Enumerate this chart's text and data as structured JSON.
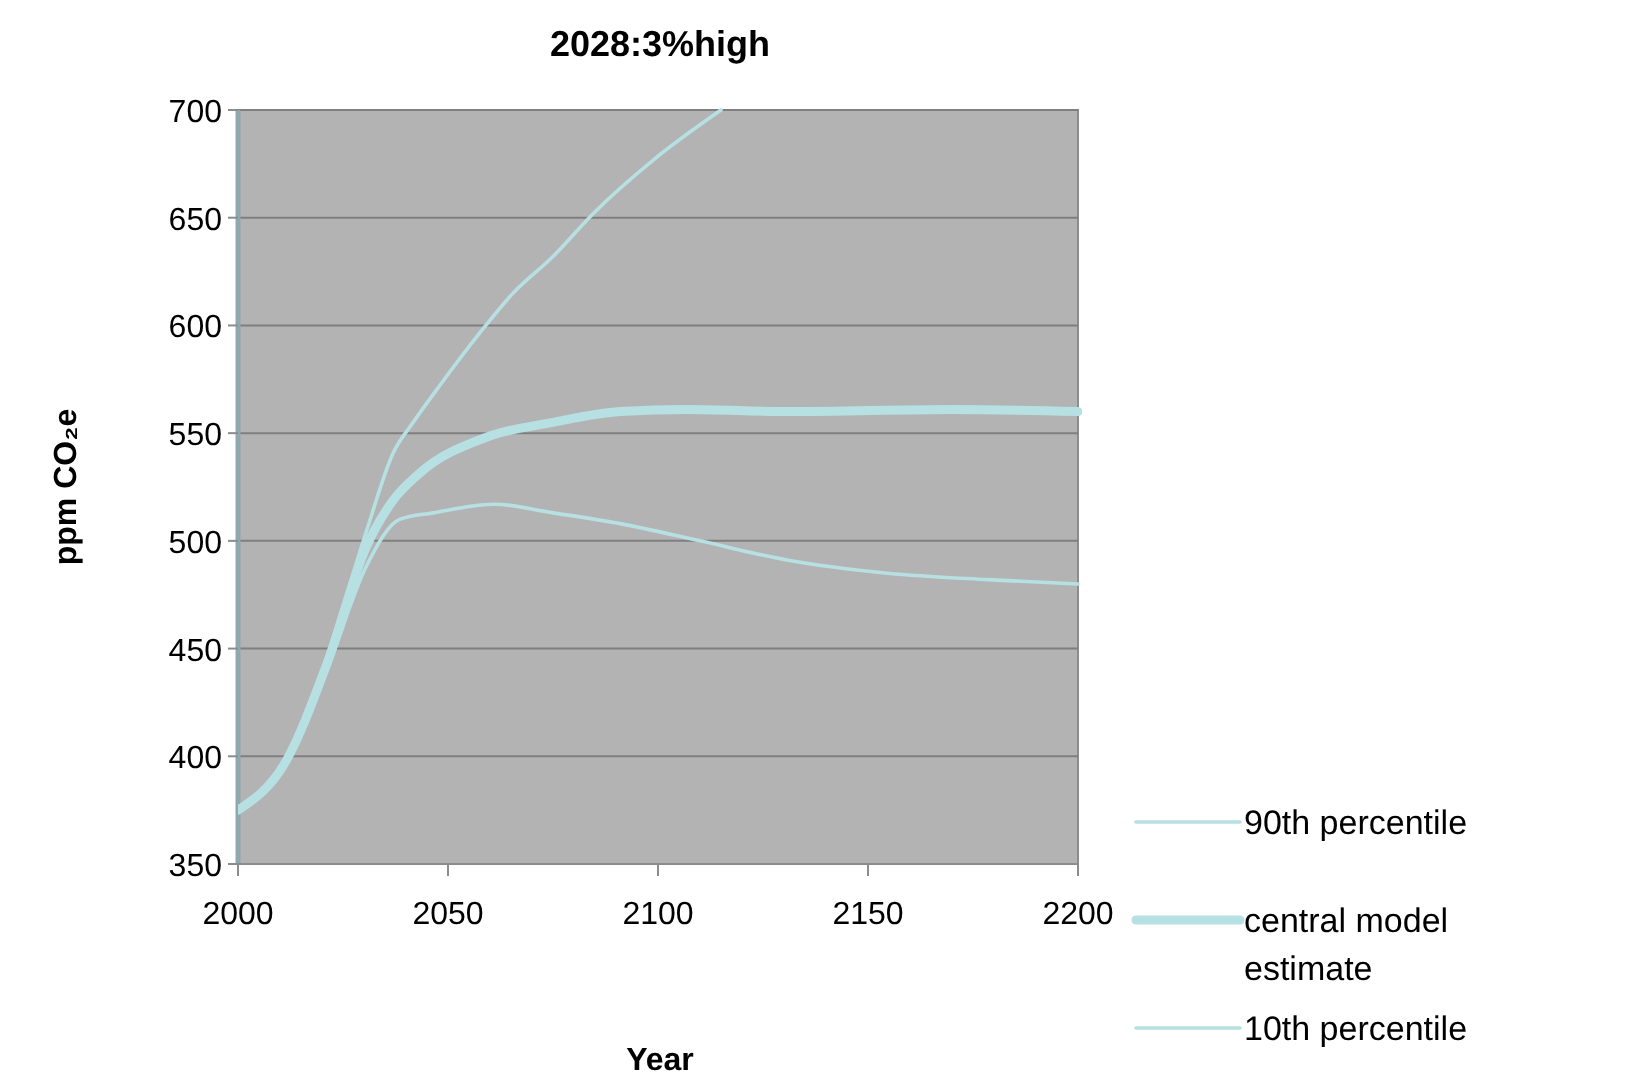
{
  "chart_data": {
    "type": "line",
    "title": "2028:3%high",
    "xlabel": "Year",
    "ylabel": "ppm CO₂e",
    "xlim": [
      2000,
      2200
    ],
    "xticks": [
      2000,
      2050,
      2100,
      2150,
      2200
    ],
    "ylim": [
      350,
      700
    ],
    "yticks": [
      350,
      400,
      450,
      500,
      550,
      600,
      650,
      700
    ],
    "grid": "y",
    "legend": "right",
    "marker": "none",
    "line_style": "solid",
    "series": [
      {
        "name": "90th percentile",
        "color": "#b7e0e3",
        "x": [
          2000,
          2011.5,
          2021,
          2030.5,
          2037,
          2041.7,
          2048,
          2059,
          2065.5,
          2075,
          2084.6,
          2099,
          2115
        ],
        "values": [
          375,
          398,
          445,
          504,
          541,
          555,
          572,
          600,
          615,
          632,
          652,
          677,
          700
        ]
      },
      {
        "name": "central model estimate",
        "color": "#b7e0e3",
        "x": [
          2000,
          2011.5,
          2021,
          2030.5,
          2037,
          2043,
          2059,
          2075,
          2091,
          2107,
          2131,
          2170.5,
          2200
        ],
        "values": [
          375,
          398,
          442,
          497,
          519,
          531,
          548,
          555,
          560,
          561,
          560,
          561,
          560
        ]
      },
      {
        "name": "10th percentile",
        "color": "#b7e0e3",
        "x": [
          2000,
          2011.5,
          2021,
          2030.5,
          2038.5,
          2046.5,
          2061,
          2075,
          2091,
          2110,
          2131,
          2154.7,
          2178.5,
          2200
        ],
        "values": [
          374,
          397,
          439,
          488,
          510,
          513,
          517,
          513,
          508,
          500,
          491,
          485,
          482,
          480
        ]
      }
    ]
  }
}
